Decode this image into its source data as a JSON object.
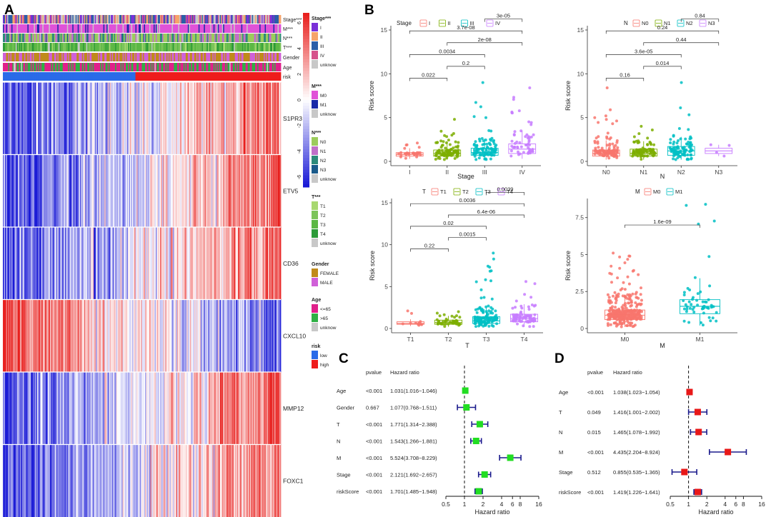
{
  "panels": {
    "a": "A",
    "b": "B",
    "c": "C",
    "d": "D"
  },
  "heatmap": {
    "annotation_tracks": [
      "Stage***",
      "M***",
      "N***",
      "T***",
      "Gender",
      "Age",
      "risk"
    ],
    "genes": [
      "S1PR3",
      "ETV5",
      "CD36",
      "CXCL10",
      "MMP12",
      "FOXC1"
    ],
    "gene_trend": [
      1,
      1,
      1,
      -1,
      1,
      1
    ],
    "colorbar": {
      "ticks": [
        "6",
        "4",
        "2",
        "0",
        "-2",
        "-4",
        "-6"
      ],
      "low_color": "#1a1ad6",
      "mid_color": "#ffffff",
      "high_color": "#e8201e"
    },
    "legends": [
      {
        "title": "Stage***",
        "items": [
          {
            "label": "I",
            "color": "#7a2fd8"
          },
          {
            "label": "II",
            "color": "#f6a46a"
          },
          {
            "label": "III",
            "color": "#2b5ea8"
          },
          {
            "label": "IV",
            "color": "#d6538c"
          },
          {
            "label": "unknow",
            "color": "#c8c8c8"
          }
        ]
      },
      {
        "title": "M***",
        "items": [
          {
            "label": "M0",
            "color": "#e052d8"
          },
          {
            "label": "M1",
            "color": "#1a2aa8"
          },
          {
            "label": "unknow",
            "color": "#c8c8c8"
          }
        ]
      },
      {
        "title": "N***",
        "items": [
          {
            "label": "N0",
            "color": "#9ccc5c"
          },
          {
            "label": "N1",
            "color": "#c070c8"
          },
          {
            "label": "N2",
            "color": "#2d8a7a"
          },
          {
            "label": "N3",
            "color": "#1a5a8a"
          },
          {
            "label": "unknow",
            "color": "#c8c8c8"
          }
        ]
      },
      {
        "title": "T***",
        "items": [
          {
            "label": "T1",
            "color": "#a8d870"
          },
          {
            "label": "T2",
            "color": "#7cc45a"
          },
          {
            "label": "T3",
            "color": "#5cb845"
          },
          {
            "label": "T4",
            "color": "#2c9a38"
          },
          {
            "label": "unknow",
            "color": "#c8c8c8"
          }
        ]
      },
      {
        "title": "Gender",
        "items": [
          {
            "label": "FEMALE",
            "color": "#c08a1a"
          },
          {
            "label": "MALE",
            "color": "#d060d8"
          }
        ]
      },
      {
        "title": "Age",
        "items": [
          {
            "label": "<=65",
            "color": "#e0208a"
          },
          {
            "label": ">65",
            "color": "#2fb044"
          },
          {
            "label": "unknow",
            "color": "#c8c8c8"
          }
        ]
      },
      {
        "title": "risk",
        "items": [
          {
            "label": "low",
            "color": "#2a6be8"
          },
          {
            "label": "high",
            "color": "#ee1c1c"
          }
        ]
      }
    ]
  },
  "chart_data": [
    {
      "type": "box",
      "id": "stage",
      "legend_title": "Stage",
      "categories": [
        "I",
        "II",
        "III",
        "IV"
      ],
      "colors": [
        "#f8766d",
        "#7cae00",
        "#00bfc4",
        "#c77cff"
      ],
      "xlabel": "Stage",
      "ylabel": "Risk score",
      "ylim": [
        0,
        15
      ],
      "yticks": [
        0,
        5,
        10,
        15
      ],
      "boxes": [
        {
          "q1": 0.6,
          "median": 0.8,
          "q3": 1.0,
          "lo": 0.3,
          "hi": 1.5,
          "max": 2.1,
          "n": 30
        },
        {
          "q1": 0.6,
          "median": 0.9,
          "q3": 1.3,
          "lo": 0.2,
          "hi": 2.3,
          "max": 4.8,
          "n": 110
        },
        {
          "q1": 0.7,
          "median": 1.0,
          "q3": 1.5,
          "lo": 0.2,
          "hi": 2.6,
          "max": 9.0,
          "n": 100
        },
        {
          "q1": 0.9,
          "median": 1.4,
          "q3": 2.0,
          "lo": 0.3,
          "hi": 3.5,
          "max": 8.4,
          "n": 55
        }
      ],
      "comparisons": [
        {
          "a": 0,
          "b": 1,
          "p": "0.022"
        },
        {
          "a": 0,
          "b": 2,
          "p": "0.0034"
        },
        {
          "a": 0,
          "b": 3,
          "p": "3.7e-08"
        },
        {
          "a": 1,
          "b": 2,
          "p": "0.2"
        },
        {
          "a": 1,
          "b": 3,
          "p": "2e-08"
        },
        {
          "a": 2,
          "b": 3,
          "p": "3e-05"
        }
      ]
    },
    {
      "type": "box",
      "id": "n",
      "legend_title": "N",
      "categories": [
        "N0",
        "N1",
        "N2",
        "N3"
      ],
      "colors": [
        "#f8766d",
        "#7cae00",
        "#00bfc4",
        "#c77cff"
      ],
      "xlabel": "N",
      "ylabel": "Risk score",
      "ylim": [
        0,
        15
      ],
      "yticks": [
        0,
        5,
        10,
        15
      ],
      "boxes": [
        {
          "q1": 0.6,
          "median": 0.9,
          "q3": 1.3,
          "lo": 0.2,
          "hi": 2.4,
          "max": 8.4,
          "n": 110
        },
        {
          "q1": 0.6,
          "median": 0.9,
          "q3": 1.4,
          "lo": 0.2,
          "hi": 2.3,
          "max": 4.0,
          "n": 90
        },
        {
          "q1": 0.7,
          "median": 1.2,
          "q3": 1.7,
          "lo": 0.2,
          "hi": 2.8,
          "max": 9.0,
          "n": 95
        },
        {
          "q1": 0.9,
          "median": 1.2,
          "q3": 1.5,
          "lo": 0.6,
          "hi": 1.9,
          "max": 1.9,
          "n": 4
        }
      ],
      "comparisons": [
        {
          "a": 0,
          "b": 1,
          "p": "0.16"
        },
        {
          "a": 0,
          "b": 2,
          "p": "3.6e-05"
        },
        {
          "a": 0,
          "b": 3,
          "p": "0.24"
        },
        {
          "a": 1,
          "b": 2,
          "p": "0.014"
        },
        {
          "a": 1,
          "b": 3,
          "p": "0.44"
        },
        {
          "a": 2,
          "b": 3,
          "p": "0.84"
        }
      ]
    },
    {
      "type": "box",
      "id": "t",
      "legend_title": "T",
      "categories": [
        "T1",
        "T2",
        "T3",
        "T4"
      ],
      "colors": [
        "#f8766d",
        "#7cae00",
        "#00bfc4",
        "#c77cff"
      ],
      "xlabel": "T",
      "ylabel": "Risk score",
      "ylim": [
        0,
        15
      ],
      "yticks": [
        0,
        5,
        10,
        15
      ],
      "boxes": [
        {
          "q1": 0.5,
          "median": 0.6,
          "q3": 0.8,
          "lo": 0.3,
          "hi": 1.1,
          "max": 2.1,
          "n": 12
        },
        {
          "q1": 0.5,
          "median": 0.7,
          "q3": 1.0,
          "lo": 0.2,
          "hi": 1.5,
          "max": 2.0,
          "n": 45
        },
        {
          "q1": 0.6,
          "median": 0.9,
          "q3": 1.4,
          "lo": 0.2,
          "hi": 2.5,
          "max": 9.0,
          "n": 140
        },
        {
          "q1": 0.8,
          "median": 1.2,
          "q3": 1.7,
          "lo": 0.2,
          "hi": 2.9,
          "max": 5.6,
          "n": 80
        }
      ],
      "comparisons": [
        {
          "a": 0,
          "b": 1,
          "p": "0.22"
        },
        {
          "a": 0,
          "b": 2,
          "p": "0.02"
        },
        {
          "a": 0,
          "b": 3,
          "p": "0.0036"
        },
        {
          "a": 1,
          "b": 2,
          "p": "0.0015"
        },
        {
          "a": 1,
          "b": 3,
          "p": "6.4e-06"
        },
        {
          "a": 2,
          "b": 3,
          "p": "0.0039"
        }
      ]
    },
    {
      "type": "box",
      "id": "m",
      "legend_title": "M",
      "categories": [
        "M0",
        "M1"
      ],
      "colors": [
        "#f8766d",
        "#00bfc4"
      ],
      "xlabel": "M",
      "ylabel": "Risk score",
      "ylim": [
        0,
        8.5
      ],
      "yticks": [
        0.0,
        2.5,
        5.0,
        7.5
      ],
      "boxes": [
        {
          "q1": 0.6,
          "median": 0.9,
          "q3": 1.25,
          "lo": 0.1,
          "hi": 2.3,
          "max": 5.1,
          "n": 330
        },
        {
          "q1": 1.0,
          "median": 1.5,
          "q3": 1.95,
          "lo": 0.2,
          "hi": 3.4,
          "max": 8.4,
          "n": 55
        }
      ],
      "comparisons": [
        {
          "a": 0,
          "b": 1,
          "p": "1.6e-09"
        }
      ]
    },
    {
      "type": "forest",
      "id": "c",
      "color": "#22dd22",
      "col_pvalue": "pvalue",
      "col_hr": "Hazard ratio",
      "xlabel": "Hazard ratio",
      "xticks": [
        0.5,
        1,
        2,
        4,
        6,
        8,
        16
      ],
      "xtick_labels": [
        "0.5",
        "1",
        "2",
        "4",
        "6",
        "8",
        "16"
      ],
      "rows": [
        {
          "name": "Age",
          "p": "<0.001",
          "hr_text": "1.031(1.016−1.046)",
          "hr": 1.031,
          "lo": 1.016,
          "hi": 1.046
        },
        {
          "name": "Gender",
          "p": "0.667",
          "hr_text": "1.077(0.768−1.511)",
          "hr": 1.077,
          "lo": 0.768,
          "hi": 1.511
        },
        {
          "name": "T",
          "p": "<0.001",
          "hr_text": "1.771(1.314−2.388)",
          "hr": 1.771,
          "lo": 1.314,
          "hi": 2.388
        },
        {
          "name": "N",
          "p": "<0.001",
          "hr_text": "1.543(1.266−1.881)",
          "hr": 1.543,
          "lo": 1.266,
          "hi": 1.881
        },
        {
          "name": "M",
          "p": "<0.001",
          "hr_text": "5.524(3.708−8.229)",
          "hr": 5.524,
          "lo": 3.708,
          "hi": 8.229
        },
        {
          "name": "Stage",
          "p": "<0.001",
          "hr_text": "2.121(1.692−2.657)",
          "hr": 2.121,
          "lo": 1.692,
          "hi": 2.657
        },
        {
          "name": "riskScore",
          "p": "<0.001",
          "hr_text": "1.701(1.485−1.948)",
          "hr": 1.701,
          "lo": 1.485,
          "hi": 1.948
        }
      ]
    },
    {
      "type": "forest",
      "id": "d",
      "color": "#e81818",
      "col_pvalue": "pvalue",
      "col_hr": "Hazard ratio",
      "xlabel": "Hazard ratio",
      "xticks": [
        0.5,
        1,
        2,
        4,
        6,
        8,
        16
      ],
      "xtick_labels": [
        "0.5",
        "1",
        "2",
        "4",
        "6",
        "8",
        "16"
      ],
      "rows": [
        {
          "name": "Age",
          "p": "<0.001",
          "hr_text": "1.038(1.023−1.054)",
          "hr": 1.038,
          "lo": 1.023,
          "hi": 1.054
        },
        {
          "name": "T",
          "p": "0.049",
          "hr_text": "1.416(1.001−2.002)",
          "hr": 1.416,
          "lo": 1.001,
          "hi": 2.002
        },
        {
          "name": "N",
          "p": "0.015",
          "hr_text": "1.465(1.078−1.992)",
          "hr": 1.465,
          "lo": 1.078,
          "hi": 1.992
        },
        {
          "name": "M",
          "p": "<0.001",
          "hr_text": "4.435(2.204−8.924)",
          "hr": 4.435,
          "lo": 2.204,
          "hi": 8.924
        },
        {
          "name": "Stage",
          "p": "0.512",
          "hr_text": "0.855(0.535−1.365)",
          "hr": 0.855,
          "lo": 0.535,
          "hi": 1.365
        },
        {
          "name": "riskScore",
          "p": "<0.001",
          "hr_text": "1.419(1.226−1.641)",
          "hr": 1.419,
          "lo": 1.226,
          "hi": 1.641
        }
      ]
    }
  ]
}
